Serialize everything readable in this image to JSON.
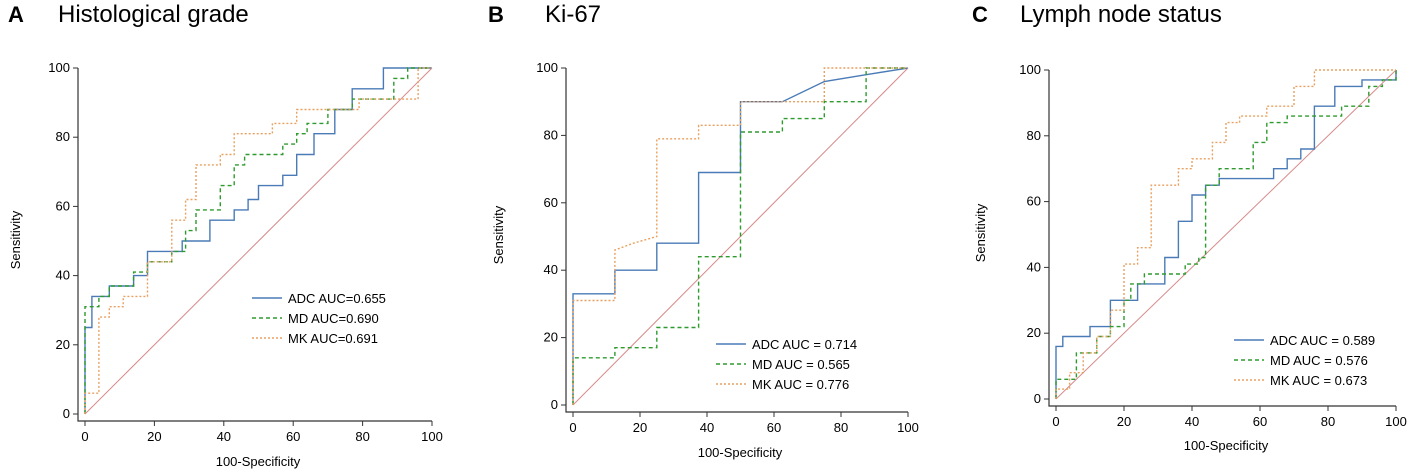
{
  "chart_data": [
    {
      "type": "line",
      "panel": "A",
      "title": "Histological grade",
      "xlabel": "100-Specificity",
      "ylabel": "Sensitivity",
      "xlim": [
        0,
        100
      ],
      "ylim": [
        0,
        100
      ],
      "xticks": [
        0,
        20,
        40,
        60,
        80,
        100
      ],
      "yticks": [
        0,
        20,
        40,
        60,
        80,
        100
      ],
      "reference_line": [
        [
          0,
          0
        ],
        [
          100,
          100
        ]
      ],
      "series": [
        {
          "name": "ADC",
          "legend": "ADC AUC=0.655",
          "color": "#4a7bb7",
          "dash": "solid",
          "points": [
            [
              0,
              0
            ],
            [
              0,
              25
            ],
            [
              2,
              25
            ],
            [
              2,
              34
            ],
            [
              7,
              34
            ],
            [
              7,
              37
            ],
            [
              14,
              37
            ],
            [
              14,
              40
            ],
            [
              18,
              40
            ],
            [
              18,
              47
            ],
            [
              28,
              47
            ],
            [
              28,
              50
            ],
            [
              36,
              50
            ],
            [
              36,
              56
            ],
            [
              43,
              56
            ],
            [
              43,
              59
            ],
            [
              47,
              59
            ],
            [
              47,
              62
            ],
            [
              50,
              62
            ],
            [
              50,
              66
            ],
            [
              57,
              66
            ],
            [
              57,
              69
            ],
            [
              61,
              69
            ],
            [
              61,
              75
            ],
            [
              66,
              75
            ],
            [
              66,
              81
            ],
            [
              72,
              81
            ],
            [
              72,
              88
            ],
            [
              77,
              88
            ],
            [
              77,
              94
            ],
            [
              86,
              94
            ],
            [
              86,
              100
            ],
            [
              100,
              100
            ]
          ]
        },
        {
          "name": "MD",
          "legend": "MD AUC=0.690",
          "color": "#2e9b2e",
          "dash": "4,3",
          "points": [
            [
              0,
              0
            ],
            [
              0,
              31
            ],
            [
              4,
              31
            ],
            [
              4,
              34
            ],
            [
              7,
              34
            ],
            [
              7,
              37
            ],
            [
              14,
              37
            ],
            [
              14,
              41
            ],
            [
              18,
              41
            ],
            [
              18,
              44
            ],
            [
              25,
              44
            ],
            [
              25,
              47
            ],
            [
              29,
              47
            ],
            [
              29,
              53
            ],
            [
              32,
              53
            ],
            [
              32,
              59
            ],
            [
              39,
              59
            ],
            [
              39,
              66
            ],
            [
              43,
              66
            ],
            [
              43,
              72
            ],
            [
              46,
              72
            ],
            [
              46,
              75
            ],
            [
              57,
              75
            ],
            [
              57,
              78
            ],
            [
              61,
              78
            ],
            [
              61,
              81
            ],
            [
              64,
              81
            ],
            [
              64,
              84
            ],
            [
              70,
              84
            ],
            [
              70,
              88
            ],
            [
              77,
              88
            ],
            [
              77,
              91
            ],
            [
              89,
              91
            ],
            [
              89,
              97
            ],
            [
              93,
              97
            ],
            [
              93,
              100
            ],
            [
              100,
              100
            ]
          ]
        },
        {
          "name": "MK",
          "legend": "MK AUC=0.691",
          "color": "#e8a060",
          "dash": "2,2",
          "points": [
            [
              0,
              0
            ],
            [
              0,
              6
            ],
            [
              4,
              6
            ],
            [
              4,
              28
            ],
            [
              7,
              28
            ],
            [
              7,
              31
            ],
            [
              11,
              31
            ],
            [
              11,
              34
            ],
            [
              18,
              34
            ],
            [
              18,
              44
            ],
            [
              25,
              44
            ],
            [
              25,
              56
            ],
            [
              29,
              56
            ],
            [
              29,
              62
            ],
            [
              32,
              62
            ],
            [
              32,
              72
            ],
            [
              39,
              72
            ],
            [
              39,
              75
            ],
            [
              43,
              75
            ],
            [
              43,
              81
            ],
            [
              54,
              81
            ],
            [
              54,
              84
            ],
            [
              61,
              84
            ],
            [
              61,
              88
            ],
            [
              79,
              88
            ],
            [
              79,
              91
            ],
            [
              96,
              91
            ],
            [
              96,
              100
            ],
            [
              100,
              100
            ]
          ]
        }
      ]
    },
    {
      "type": "line",
      "panel": "B",
      "title": "Ki-67",
      "xlabel": "100-Specificity",
      "ylabel": "Sensitivity",
      "xlim": [
        0,
        100
      ],
      "ylim": [
        0,
        100
      ],
      "xticks": [
        0,
        20,
        40,
        60,
        80,
        100
      ],
      "yticks": [
        0,
        20,
        40,
        60,
        80,
        100
      ],
      "reference_line": [
        [
          0,
          0
        ],
        [
          100,
          100
        ]
      ],
      "series": [
        {
          "name": "ADC",
          "legend": "ADC AUC = 0.714",
          "color": "#4a7bb7",
          "dash": "solid",
          "points": [
            [
              0,
              0
            ],
            [
              0,
              33
            ],
            [
              12.5,
              33
            ],
            [
              12.5,
              40
            ],
            [
              25,
              40
            ],
            [
              25,
              48
            ],
            [
              37.5,
              48
            ],
            [
              37.5,
              69
            ],
            [
              50,
              69
            ],
            [
              50,
              90
            ],
            [
              62.5,
              90
            ],
            [
              75,
              96
            ],
            [
              87.5,
              98
            ],
            [
              100,
              100
            ]
          ]
        },
        {
          "name": "MD",
          "legend": "MD AUC = 0.565",
          "color": "#2e9b2e",
          "dash": "4,3",
          "points": [
            [
              0,
              0
            ],
            [
              0,
              14
            ],
            [
              12.5,
              14
            ],
            [
              12.5,
              17
            ],
            [
              25,
              17
            ],
            [
              25,
              23
            ],
            [
              37.5,
              23
            ],
            [
              37.5,
              44
            ],
            [
              50,
              44
            ],
            [
              50,
              81
            ],
            [
              62.5,
              81
            ],
            [
              62.5,
              85
            ],
            [
              75,
              85
            ],
            [
              75,
              90
            ],
            [
              87.5,
              90
            ],
            [
              87.5,
              100
            ],
            [
              100,
              100
            ]
          ]
        },
        {
          "name": "MK",
          "legend": "MK AUC = 0.776",
          "color": "#e8a060",
          "dash": "2,2",
          "points": [
            [
              0,
              0
            ],
            [
              0,
              31
            ],
            [
              12.5,
              31
            ],
            [
              12.5,
              46
            ],
            [
              18,
              48
            ],
            [
              25,
              50
            ],
            [
              25,
              79
            ],
            [
              37.5,
              79
            ],
            [
              37.5,
              83
            ],
            [
              50,
              83
            ],
            [
              50,
              90
            ],
            [
              62.5,
              90
            ],
            [
              75,
              90
            ],
            [
              75,
              100
            ],
            [
              100,
              100
            ]
          ]
        }
      ]
    },
    {
      "type": "line",
      "panel": "C",
      "title": "Lymph node status",
      "xlabel": "100-Specificity",
      "ylabel": "Sensitivity",
      "xlim": [
        0,
        100
      ],
      "ylim": [
        0,
        100
      ],
      "xticks": [
        0,
        20,
        40,
        60,
        80,
        100
      ],
      "yticks": [
        0,
        20,
        40,
        60,
        80,
        100
      ],
      "reference_line": [
        [
          0,
          0
        ],
        [
          100,
          100
        ]
      ],
      "series": [
        {
          "name": "ADC",
          "legend": "ADC AUC = 0.589",
          "color": "#4a7bb7",
          "dash": "solid",
          "points": [
            [
              0,
              0
            ],
            [
              0,
              16
            ],
            [
              2,
              16
            ],
            [
              2,
              19
            ],
            [
              10,
              19
            ],
            [
              10,
              22
            ],
            [
              16,
              22
            ],
            [
              16,
              30
            ],
            [
              24,
              30
            ],
            [
              24,
              35
            ],
            [
              32,
              35
            ],
            [
              32,
              43
            ],
            [
              36,
              43
            ],
            [
              36,
              54
            ],
            [
              40,
              54
            ],
            [
              40,
              62
            ],
            [
              44,
              62
            ],
            [
              44,
              65
            ],
            [
              48,
              65
            ],
            [
              48,
              67
            ],
            [
              64,
              67
            ],
            [
              64,
              70
            ],
            [
              68,
              70
            ],
            [
              68,
              73
            ],
            [
              72,
              73
            ],
            [
              72,
              76
            ],
            [
              76,
              76
            ],
            [
              76,
              89
            ],
            [
              82,
              89
            ],
            [
              82,
              95
            ],
            [
              90,
              95
            ],
            [
              90,
              97
            ],
            [
              100,
              97
            ],
            [
              100,
              100
            ]
          ]
        },
        {
          "name": "MD",
          "legend": "MD AUC = 0.576",
          "color": "#2e9b2e",
          "dash": "4,3",
          "points": [
            [
              0,
              0
            ],
            [
              0,
              6
            ],
            [
              6,
              6
            ],
            [
              6,
              14
            ],
            [
              12,
              14
            ],
            [
              12,
              19
            ],
            [
              16,
              19
            ],
            [
              16,
              22
            ],
            [
              20,
              22
            ],
            [
              20,
              30
            ],
            [
              22,
              30
            ],
            [
              22,
              35
            ],
            [
              26,
              35
            ],
            [
              26,
              38
            ],
            [
              38,
              38
            ],
            [
              38,
              41
            ],
            [
              42,
              41
            ],
            [
              42,
              43
            ],
            [
              44,
              43
            ],
            [
              44,
              65
            ],
            [
              48,
              65
            ],
            [
              48,
              70
            ],
            [
              58,
              70
            ],
            [
              58,
              78
            ],
            [
              62,
              78
            ],
            [
              62,
              84
            ],
            [
              68,
              84
            ],
            [
              68,
              86
            ],
            [
              84,
              86
            ],
            [
              84,
              89
            ],
            [
              92,
              89
            ],
            [
              92,
              95
            ],
            [
              96,
              95
            ],
            [
              96,
              97
            ],
            [
              100,
              97
            ],
            [
              100,
              100
            ]
          ]
        },
        {
          "name": "MK",
          "legend": "MK AUC = 0.673",
          "color": "#e8a060",
          "dash": "2,2",
          "points": [
            [
              0,
              0
            ],
            [
              0,
              3
            ],
            [
              4,
              3
            ],
            [
              4,
              8
            ],
            [
              8,
              8
            ],
            [
              8,
              14
            ],
            [
              12,
              14
            ],
            [
              12,
              19
            ],
            [
              16,
              19
            ],
            [
              16,
              27
            ],
            [
              20,
              27
            ],
            [
              20,
              41
            ],
            [
              24,
              41
            ],
            [
              24,
              46
            ],
            [
              28,
              46
            ],
            [
              28,
              65
            ],
            [
              36,
              65
            ],
            [
              36,
              70
            ],
            [
              40,
              70
            ],
            [
              40,
              73
            ],
            [
              46,
              73
            ],
            [
              46,
              78
            ],
            [
              50,
              78
            ],
            [
              50,
              84
            ],
            [
              54,
              84
            ],
            [
              54,
              86
            ],
            [
              62,
              86
            ],
            [
              62,
              89
            ],
            [
              70,
              89
            ],
            [
              70,
              95
            ],
            [
              76,
              95
            ],
            [
              76,
              100
            ],
            [
              100,
              100
            ]
          ]
        }
      ]
    }
  ]
}
